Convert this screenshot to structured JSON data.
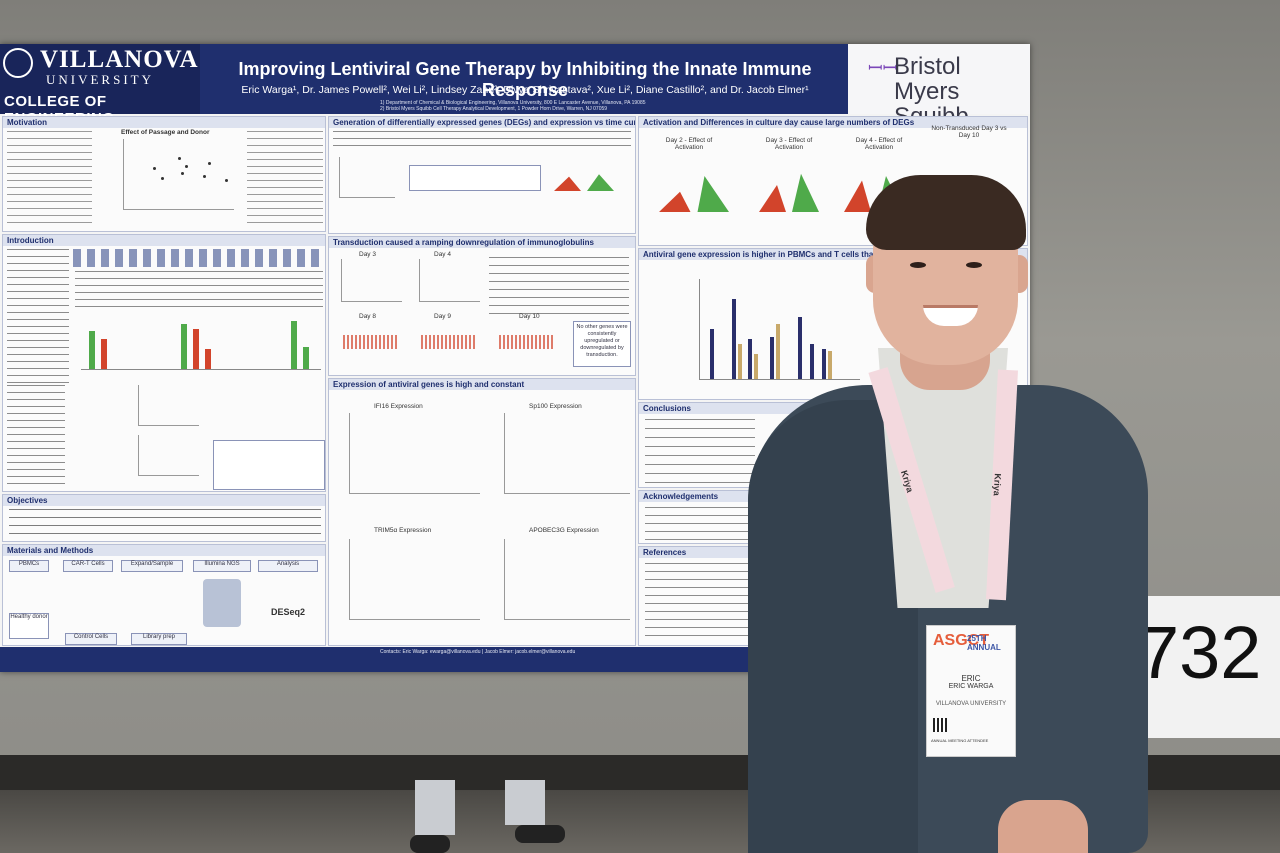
{
  "poster": {
    "university": "VILLANOVA",
    "university_sub": "UNIVERSITY",
    "college": "COLLEGE OF ENGINEERING",
    "title": "Improving Lentiviral Gene Therapy by Inhibiting the Innate Immune Response",
    "authors": "Eric Warga¹, Dr. James Powell², Wei Li², Lindsey Zahn², Divya Shrivastava², Xue Li², Diane Castillo², and Dr. Jacob Elmer¹",
    "affiliation_1": "1) Department of Chemical & Biological Engineering, Villanova University, 800 E Lancaster Avenue, Villanova, PA 19085",
    "affiliation_2": "2) Bristol Myers Squibb Cell Therapy Analytical Development, 1 Powder Horn Drive, Warren, NJ 07059",
    "sponsor_line1": "Bristol Myers",
    "sponsor_line2": "Squibb",
    "contact": "Contacts: Eric Warga: ewarga@villanova.edu | Jacob Elmer: jacob.elmer@villanova.edu",
    "sections": {
      "motivation": "Motivation",
      "effect_passage": "Effect of Passage and Donor",
      "introduction": "Introduction",
      "objectives": "Objectives",
      "materials": "Materials and Methods",
      "degs": "Generation of differentially expressed genes (DEGs) and expression vs time curves",
      "transduction": "Transduction caused a ramping downregulation of immunoglobulins",
      "antiviral_expr": "Expression of antiviral genes is high and constant",
      "activation": "Activation and Differences in culture day cause large numbers of DEGs",
      "antiviral_high": "Antiviral gene expression is higher in PBMCs and T cells than in h",
      "conclusions": "Conclusions",
      "acknowledgements": "Acknowledgements",
      "references": "References"
    },
    "panels": {
      "day3": "Day 3",
      "day4": "Day 4",
      "day8": "Day 8",
      "day9": "Day 9",
      "day10": "Day 10",
      "act2": "Day 2 - Effect of Activation",
      "act3": "Day 3 - Effect of Activation",
      "act4": "Day 4 - Effect of Activation",
      "nontrans": "Non-Transduced Day 3 vs Day 10",
      "ifi16": "IFI16 Expression",
      "sp100": "Sp100 Expression",
      "trim5a": "TRIM5α Expression",
      "apobec": "APOBEC3G Expression",
      "deseq": "DESeq2",
      "no_other": "No other genes were consistently upregulated or downregulated by transduction."
    },
    "methods": [
      "PBMCs",
      "CAR-T Cells",
      "Expand/Sample",
      "Illumina NGS",
      "Analysis",
      "Control Cells",
      "Library prep",
      "Healthy donor"
    ]
  },
  "person": {
    "badge_first": "ERIC",
    "badge_name": "ERIC WARGA",
    "badge_org": "VILLANOVA UNIVERSITY",
    "badge_role": "ANNUAL MEETING ATTENDEE",
    "badge_event": "ASGCT",
    "badge_event2": "25TH ANNUAL",
    "lanyard": "Kriya"
  },
  "booth_number": "732",
  "colors": {
    "header": "#1f2f6e",
    "jacket": "#3c4a58",
    "volcano_red": "#d2442b",
    "volcano_green": "#4faa4a",
    "bar_navy": "#2a2f6b",
    "bar_tan": "#c8a96a"
  }
}
